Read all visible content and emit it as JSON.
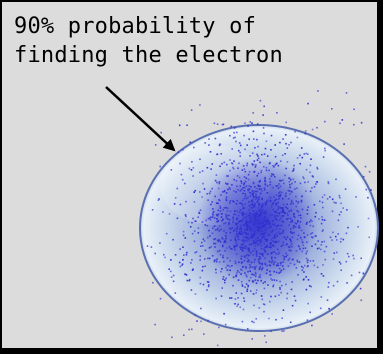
{
  "diagram": {
    "caption_lines": [
      "90% probability of",
      "finding the electron"
    ]
  },
  "colors": {
    "panel_bg": "#dcdcdc",
    "border": "#000000",
    "sphere_light": "#e4eef8",
    "sphere_mid": "#8ea8d8",
    "sphere_dark": "#4a5aa8",
    "dots": "#2f2fd0"
  }
}
